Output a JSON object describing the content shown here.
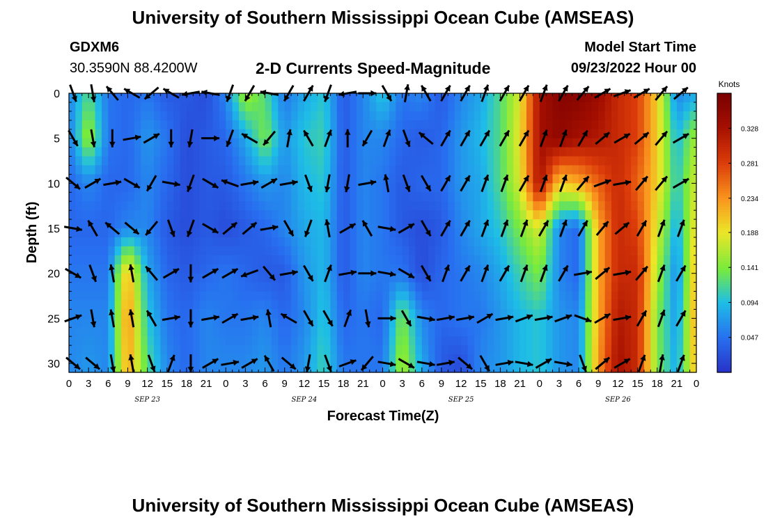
{
  "header": {
    "title": "University of Southern Mississippi Ocean Cube (AMSEAS)",
    "station": "GDXM6",
    "coords": "30.3590N  88.4200W",
    "subtitle": "2-D Currents Speed-Magnitude",
    "model_start_label": "Model Start Time",
    "model_start_value": "09/23/2022 Hour 00"
  },
  "footer": {
    "title": "University of Southern Mississippi Ocean Cube (AMSEAS)"
  },
  "colors": {
    "low": "#2b3cc8",
    "mid": "#7ff030",
    "high": "#8a0000"
  },
  "chart_data": {
    "type": "heatmap",
    "xlabel": "Forecast Time(Z)",
    "ylabel": "Depth (ft)",
    "x_tick_labels": [
      "0",
      "3",
      "6",
      "9",
      "12",
      "15",
      "18",
      "21",
      "0",
      "3",
      "6",
      "9",
      "12",
      "15",
      "18",
      "21",
      "0",
      "3",
      "6",
      "9",
      "12",
      "15",
      "18",
      "21",
      "0",
      "3",
      "6",
      "9",
      "12",
      "15",
      "18",
      "21",
      "0"
    ],
    "date_labels": [
      {
        "label": "SEP 23",
        "hour": 12
      },
      {
        "label": "SEP 24",
        "hour": 36
      },
      {
        "label": "SEP 25",
        "hour": 60
      },
      {
        "label": "SEP 26",
        "hour": 84
      }
    ],
    "xlim": [
      0,
      96
    ],
    "ylim": [
      0,
      31
    ],
    "y_ticks": [
      0,
      5,
      10,
      15,
      20,
      25,
      30
    ],
    "colorbar": {
      "title": "Knots",
      "ticks": [
        0.047,
        0.094,
        0.141,
        0.188,
        0.234,
        0.281,
        0.328
      ],
      "range": [
        0,
        0.375
      ]
    },
    "hours": [
      0,
      3,
      6,
      9,
      12,
      15,
      18,
      21,
      24,
      27,
      30,
      33,
      36,
      39,
      42,
      45,
      48,
      51,
      54,
      57,
      60,
      63,
      66,
      69,
      72,
      75,
      78,
      81,
      84,
      87,
      90,
      93,
      96
    ],
    "depths": [
      0,
      5,
      10,
      15,
      20,
      25,
      30
    ],
    "speed_knots": [
      [
        0.06,
        0.12,
        0.05,
        0.04,
        0.05,
        0.03,
        0.03,
        0.02,
        0.06,
        0.16,
        0.12,
        0.05,
        0.08,
        0.1,
        0.03,
        0.06,
        0.1,
        0.05,
        0.06,
        0.03,
        0.06,
        0.08,
        0.12,
        0.18,
        0.33,
        0.36,
        0.36,
        0.34,
        0.3,
        0.28,
        0.2,
        0.06,
        0.08
      ],
      [
        0.05,
        0.16,
        0.05,
        0.04,
        0.07,
        0.05,
        0.02,
        0.03,
        0.04,
        0.08,
        0.14,
        0.07,
        0.1,
        0.11,
        0.03,
        0.06,
        0.06,
        0.04,
        0.03,
        0.04,
        0.07,
        0.09,
        0.12,
        0.19,
        0.33,
        0.35,
        0.33,
        0.32,
        0.3,
        0.28,
        0.2,
        0.09,
        0.16
      ],
      [
        0.04,
        0.06,
        0.04,
        0.04,
        0.06,
        0.04,
        0.02,
        0.03,
        0.03,
        0.05,
        0.07,
        0.06,
        0.09,
        0.1,
        0.03,
        0.06,
        0.05,
        0.03,
        0.04,
        0.04,
        0.07,
        0.08,
        0.12,
        0.18,
        0.33,
        0.2,
        0.22,
        0.26,
        0.3,
        0.26,
        0.2,
        0.1,
        0.18
      ],
      [
        0.04,
        0.04,
        0.04,
        0.06,
        0.06,
        0.03,
        0.02,
        0.03,
        0.02,
        0.03,
        0.04,
        0.06,
        0.08,
        0.09,
        0.03,
        0.06,
        0.05,
        0.03,
        0.02,
        0.03,
        0.06,
        0.08,
        0.1,
        0.14,
        0.18,
        0.06,
        0.04,
        0.22,
        0.3,
        0.28,
        0.18,
        0.08,
        0.2
      ],
      [
        0.05,
        0.05,
        0.05,
        0.22,
        0.08,
        0.04,
        0.03,
        0.04,
        0.05,
        0.04,
        0.03,
        0.03,
        0.07,
        0.09,
        0.03,
        0.06,
        0.05,
        0.05,
        0.02,
        0.04,
        0.05,
        0.06,
        0.08,
        0.11,
        0.14,
        0.06,
        0.04,
        0.22,
        0.3,
        0.3,
        0.16,
        0.06,
        0.22
      ],
      [
        0.06,
        0.06,
        0.06,
        0.24,
        0.1,
        0.05,
        0.04,
        0.06,
        0.05,
        0.05,
        0.06,
        0.04,
        0.06,
        0.1,
        0.04,
        0.05,
        0.04,
        0.14,
        0.06,
        0.04,
        0.05,
        0.05,
        0.07,
        0.09,
        0.1,
        0.07,
        0.06,
        0.22,
        0.32,
        0.3,
        0.14,
        0.07,
        0.23
      ],
      [
        0.06,
        0.07,
        0.06,
        0.23,
        0.12,
        0.06,
        0.04,
        0.06,
        0.06,
        0.06,
        0.07,
        0.05,
        0.07,
        0.11,
        0.05,
        0.05,
        0.05,
        0.16,
        0.08,
        0.03,
        0.02,
        0.06,
        0.07,
        0.09,
        0.1,
        0.07,
        0.06,
        0.23,
        0.33,
        0.3,
        0.14,
        0.08,
        0.22
      ]
    ],
    "arrow_direction_deg": [
      [
        160,
        170,
        320,
        300,
        230,
        300,
        260,
        280,
        200,
        210,
        280,
        210,
        30,
        200,
        260,
        90,
        150,
        10,
        330,
        30,
        30,
        20,
        30,
        30,
        20,
        30,
        40,
        60,
        70,
        60,
        40,
        50,
        80
      ],
      [
        150,
        170,
        180,
        80,
        60,
        180,
        190,
        90,
        200,
        300,
        220,
        10,
        330,
        20,
        0,
        210,
        20,
        160,
        310,
        30,
        30,
        30,
        30,
        30,
        20,
        20,
        30,
        50,
        60,
        50,
        40,
        60,
        60
      ],
      [
        130,
        60,
        80,
        120,
        210,
        100,
        200,
        120,
        290,
        80,
        60,
        80,
        160,
        190,
        190,
        80,
        350,
        160,
        150,
        30,
        30,
        20,
        20,
        30,
        20,
        20,
        40,
        70,
        80,
        40,
        40,
        60,
        40
      ],
      [
        100,
        330,
        310,
        130,
        220,
        160,
        200,
        120,
        50,
        50,
        80,
        150,
        200,
        350,
        60,
        330,
        100,
        60,
        150,
        30,
        30,
        20,
        20,
        20,
        30,
        20,
        30,
        40,
        50,
        30,
        20,
        20,
        20
      ],
      [
        120,
        160,
        350,
        350,
        320,
        60,
        180,
        60,
        60,
        250,
        140,
        80,
        150,
        20,
        80,
        90,
        100,
        120,
        150,
        20,
        30,
        20,
        30,
        20,
        20,
        30,
        80,
        50,
        80,
        40,
        20,
        30,
        30
      ],
      [
        70,
        170,
        350,
        350,
        330,
        80,
        180,
        80,
        60,
        80,
        350,
        300,
        150,
        150,
        20,
        170,
        90,
        150,
        100,
        80,
        80,
        60,
        80,
        70,
        80,
        70,
        110,
        60,
        80,
        30,
        20,
        30,
        20
      ],
      [
        130,
        130,
        170,
        350,
        160,
        20,
        180,
        60,
        80,
        60,
        330,
        130,
        190,
        160,
        70,
        220,
        100,
        120,
        100,
        80,
        130,
        150,
        80,
        100,
        60,
        100,
        160,
        50,
        60,
        20,
        10,
        20,
        10
      ]
    ]
  }
}
